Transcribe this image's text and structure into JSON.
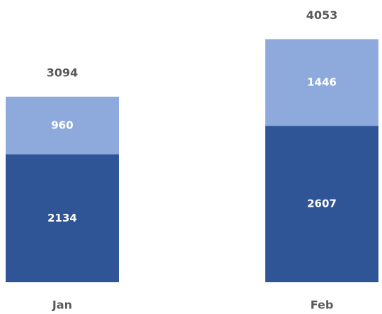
{
  "chart_data": {
    "type": "stacked_bar",
    "categories": [
      "Jan",
      "Feb"
    ],
    "series": [
      {
        "color": "#2f5597",
        "values": [
          2134,
          2607
        ]
      },
      {
        "color": "#8eaadc",
        "values": [
          960,
          1446
        ]
      }
    ],
    "totals": [
      3094,
      4053
    ]
  }
}
